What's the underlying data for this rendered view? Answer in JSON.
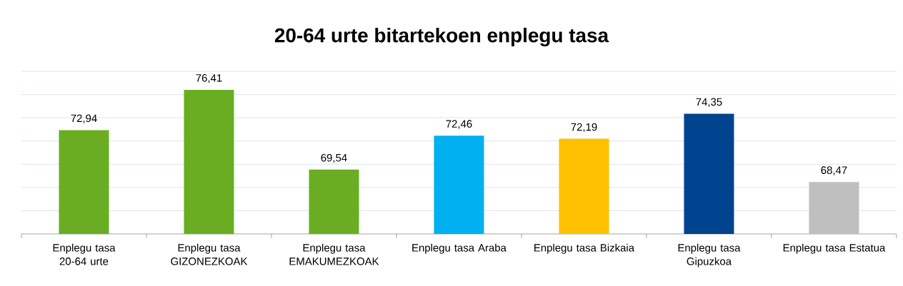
{
  "chart_data": {
    "type": "bar",
    "title": "20-64 urte bitartekoen enplegu tasa",
    "categories": [
      "Enplegu tasa 20-64 urte",
      "Enplegu tasa GIZONEZKOAK",
      "Enplegu tasa EMAKUMEZKOAK",
      "Enplegu tasa Araba",
      "Enplegu tasa Bizkaia",
      "Enplegu tasa Gipuzkoa",
      "Enplegu tasa Estatua"
    ],
    "values": [
      72.94,
      76.41,
      69.54,
      72.46,
      72.19,
      74.35,
      68.47
    ],
    "value_labels": [
      "72,94",
      "76,41",
      "69,54",
      "72,46",
      "72,19",
      "74,35",
      "68,47"
    ],
    "colors": [
      "#6aad23",
      "#6aad23",
      "#6aad23",
      "#00b0f0",
      "#ffc000",
      "#00438f",
      "#bfbfbf"
    ],
    "ylim": [
      64,
      78
    ],
    "yticks": [
      {
        "value": 66,
        "label": null
      },
      {
        "value": 68,
        "label": null
      },
      {
        "value": 70,
        "label": null
      },
      {
        "value": 72,
        "label": null
      },
      {
        "value": 74,
        "label": null
      },
      {
        "value": 76,
        "label": null
      },
      {
        "value": 78,
        "label": null
      }
    ],
    "tick_labels": "x",
    "grid": "y"
  }
}
